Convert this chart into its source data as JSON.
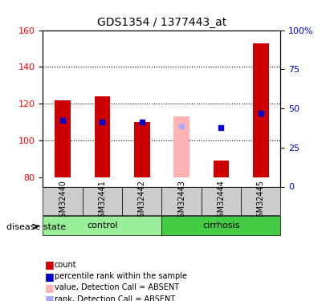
{
  "title": "GDS1354 / 1377443_at",
  "samples": [
    "GSM32440",
    "GSM32441",
    "GSM32442",
    "GSM32443",
    "GSM32444",
    "GSM32445"
  ],
  "groups": [
    "control",
    "control",
    "control",
    "cirrhosis",
    "cirrhosis",
    "cirrhosis"
  ],
  "ylim_left": [
    75,
    160
  ],
  "ylim_right": [
    0,
    100
  ],
  "yticks_left": [
    80,
    100,
    120,
    140,
    160
  ],
  "yticks_right": [
    0,
    25,
    50,
    75,
    100
  ],
  "bar_base": 80,
  "red_bar_tops": [
    122,
    124,
    110,
    113,
    89,
    153
  ],
  "red_bar_colors": [
    "#cc0000",
    "#cc0000",
    "#cc0000",
    "#ffb3b3",
    "#cc0000",
    "#cc0000"
  ],
  "blue_square_vals": [
    111,
    110,
    110,
    108,
    107,
    115
  ],
  "blue_square_colors": [
    "#0000cc",
    "#0000cc",
    "#0000cc",
    "#aaaaff",
    "#0000cc",
    "#0000cc"
  ],
  "absent_mask": [
    false,
    false,
    false,
    true,
    false,
    false
  ],
  "group_colors": {
    "control": "#99ee99",
    "cirrhosis": "#44cc44"
  },
  "group_label": "disease state",
  "legend_items": [
    {
      "label": "count",
      "color": "#cc0000",
      "marker": "s"
    },
    {
      "label": "percentile rank within the sample",
      "color": "#0000cc",
      "marker": "s"
    },
    {
      "label": "value, Detection Call = ABSENT",
      "color": "#ffb3b3",
      "marker": "s"
    },
    {
      "label": "rank, Detection Call = ABSENT",
      "color": "#aaaaff",
      "marker": "s"
    }
  ],
  "grid_dotted_vals": [
    100,
    120,
    140
  ],
  "background_color": "#ffffff",
  "plot_bg_color": "#ffffff",
  "tick_area_color": "#dddddd"
}
